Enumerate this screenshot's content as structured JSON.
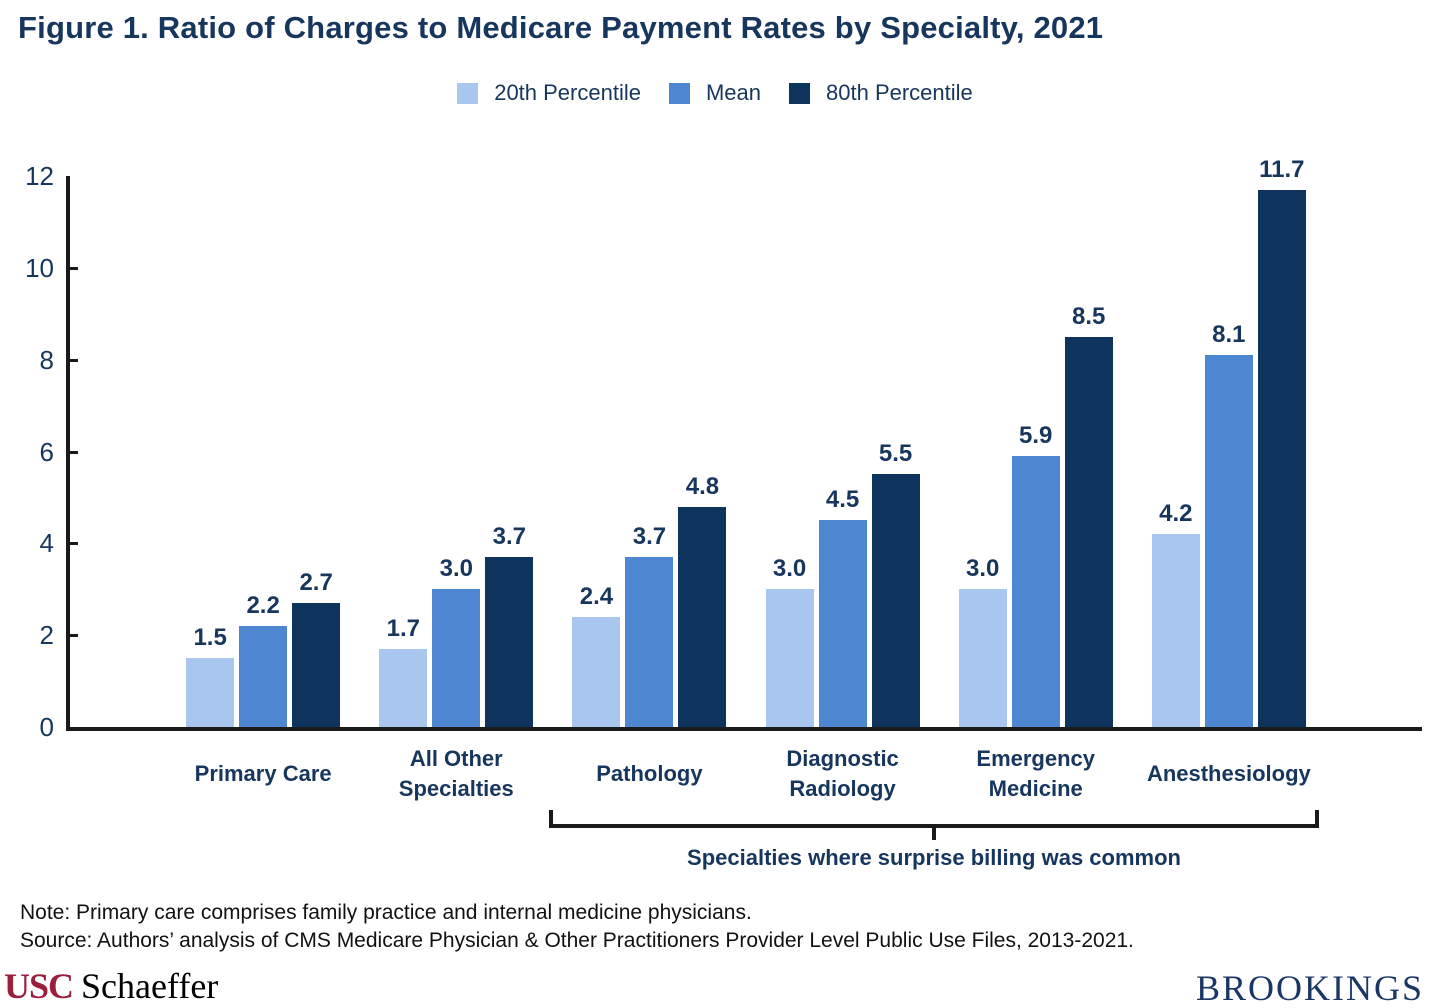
{
  "title": "Figure 1. Ratio of Charges to Medicare Payment Rates by Specialty, 2021",
  "chart_data": {
    "type": "bar",
    "title": "Figure 1. Ratio of Charges to Medicare Payment Rates by Specialty, 2021",
    "categories": [
      "Primary Care",
      "All Other Specialties",
      "Pathology",
      "Diagnostic Radiology",
      "Emergency Medicine",
      "Anesthesiology"
    ],
    "category_lines": [
      [
        "Primary Care"
      ],
      [
        "All Other",
        "Specialties"
      ],
      [
        "Pathology"
      ],
      [
        "Diagnostic",
        "Radiology"
      ],
      [
        "Emergency",
        "Medicine"
      ],
      [
        "Anesthesiology"
      ]
    ],
    "series": [
      {
        "name": "20th Percentile",
        "color": "#A9C7EE",
        "values": [
          1.5,
          1.7,
          2.4,
          3.0,
          3.0,
          4.2
        ]
      },
      {
        "name": "Mean",
        "color": "#4E87D1",
        "values": [
          2.2,
          3.0,
          3.7,
          4.5,
          5.9,
          8.1
        ]
      },
      {
        "name": "80th Percentile",
        "color": "#0E345E",
        "values": [
          2.7,
          3.7,
          4.8,
          5.5,
          8.5,
          11.7
        ]
      }
    ],
    "ylim": [
      0,
      12
    ],
    "yticks": [
      0,
      2,
      4,
      6,
      8,
      10,
      12
    ],
    "grid": false,
    "legend_position": "top",
    "annotation": {
      "text": "Specialties where surprise billing was common",
      "span": [
        "Pathology",
        "Anesthesiology"
      ]
    }
  },
  "note": "Note: Primary care comprises family practice and internal medicine physicians.",
  "source": "Source: Authors’ analysis of CMS Medicare Physician & Other Practitioners Provider Level Public Use Files, 2013-2021.",
  "footer": {
    "usc": "USC",
    "schaeffer": "Schaeffer",
    "brookings": "BROOKINGS"
  },
  "colors": {
    "text_navy": "#17365D",
    "axis_black": "#1A1A1A",
    "light_blue": "#A9C7EE",
    "medium_blue": "#4E87D1",
    "dark_navy": "#0E345E",
    "usc_cardinal": "#9A1F3D",
    "brookings_navy": "#1A3665",
    "note_black": "#111111"
  }
}
